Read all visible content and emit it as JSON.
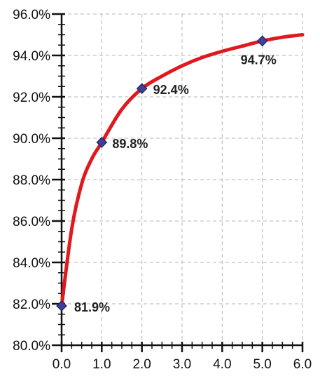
{
  "chart_data": {
    "type": "line",
    "title": "",
    "xlabel": "",
    "ylabel": "",
    "xlim": [
      0,
      6
    ],
    "ylim": [
      80,
      96
    ],
    "x_ticks": [
      0,
      1,
      2,
      3,
      4,
      5,
      6
    ],
    "x_tick_labels": [
      "0.0",
      "1.0",
      "2.0",
      "3.0",
      "4.0",
      "5.0",
      "6.0"
    ],
    "y_ticks": [
      80,
      82,
      84,
      86,
      88,
      90,
      92,
      94,
      96
    ],
    "y_tick_labels": [
      "80.0%",
      "82.0%",
      "84.0%",
      "86.0%",
      "88.0%",
      "90.0%",
      "92.0%",
      "94.0%",
      "96.0%"
    ],
    "grid": true,
    "grid_style": "dashed",
    "series": [
      {
        "color": "#e0191f",
        "curve_points": [
          {
            "x": 0.0,
            "y": 81.9
          },
          {
            "x": 0.25,
            "y": 85.6
          },
          {
            "x": 0.5,
            "y": 87.8
          },
          {
            "x": 0.75,
            "y": 89.0
          },
          {
            "x": 1.0,
            "y": 89.8
          },
          {
            "x": 1.5,
            "y": 91.4
          },
          {
            "x": 2.0,
            "y": 92.4
          },
          {
            "x": 2.5,
            "y": 93.0
          },
          {
            "x": 3.0,
            "y": 93.5
          },
          {
            "x": 3.5,
            "y": 93.9
          },
          {
            "x": 4.0,
            "y": 94.2
          },
          {
            "x": 4.5,
            "y": 94.45
          },
          {
            "x": 5.0,
            "y": 94.7
          },
          {
            "x": 5.5,
            "y": 94.88
          },
          {
            "x": 6.0,
            "y": 95.0
          }
        ]
      }
    ],
    "markers": [
      {
        "x": 0.0,
        "y": 81.9,
        "label": "81.9%"
      },
      {
        "x": 1.0,
        "y": 89.8,
        "label": "89.8%"
      },
      {
        "x": 2.0,
        "y": 92.4,
        "label": "92.4%"
      },
      {
        "x": 5.0,
        "y": 94.7,
        "label": "94.7%"
      }
    ],
    "marker_color": "#3f3f9a"
  }
}
